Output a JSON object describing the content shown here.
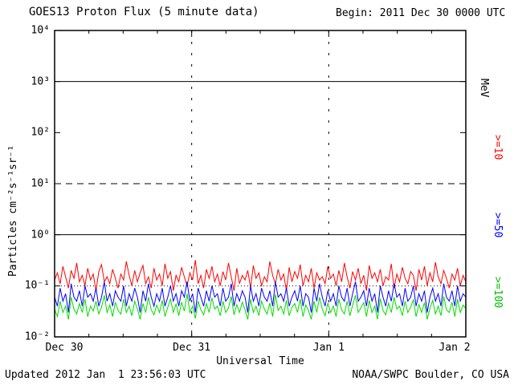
{
  "header": {
    "title": "GOES13 Proton Flux (5 minute data)",
    "begin": "Begin: 2011 Dec 30 0000 UTC"
  },
  "footer": {
    "updated": "Updated 2012 Jan  1 23:56:03 UTC",
    "source": "NOAA/SWPC Boulder, CO USA"
  },
  "axes": {
    "ylabel": "Particles cm⁻²s⁻¹sr⁻¹",
    "xlabel": "Universal Time",
    "right_unit": "MeV"
  },
  "right_labels": {
    "unit": "MeV",
    "ge10": ">=10",
    "ge50": ">=50",
    "ge100": ">=100"
  },
  "colors": {
    "ge10": "#ff0000",
    "ge50": "#0000ff",
    "ge100": "#00dd00",
    "axis": "#000000"
  },
  "chart_data": {
    "type": "line",
    "title": "GOES13 Proton Flux (5 minute data)",
    "subtitle": "Begin: 2011 Dec 30 0000 UTC",
    "xlabel": "Universal Time",
    "ylabel": "Particles cm⁻²s⁻¹sr⁻¹",
    "yscale": "log",
    "y_exponent_range": [
      -2,
      4
    ],
    "y_tick_labels": [
      "10⁴",
      "10³",
      "10²",
      "10¹",
      "10⁰",
      "10⁻¹",
      "10⁻²"
    ],
    "x_tick_labels": [
      "Dec 30",
      "Dec 31",
      "Jan 1",
      "Jan 2"
    ],
    "x_range_days": 3,
    "legend_position": "right",
    "grid": {
      "horizontal_reference_lines": [
        {
          "value": 1000,
          "style": "solid"
        },
        {
          "value": 10,
          "style": "dashed"
        },
        {
          "value": 1,
          "style": "solid"
        },
        {
          "value": 0.1,
          "style": "dotted"
        }
      ],
      "vertical_dashed_lines_at_days": [
        1,
        2
      ]
    },
    "series": [
      {
        "name": ">=10 MeV",
        "color": "#ff0000",
        "approx_range": [
          0.08,
          0.32
        ],
        "values": [
          0.13,
          0.18,
          0.11,
          0.24,
          0.15,
          0.09,
          0.2,
          0.14,
          0.28,
          0.12,
          0.16,
          0.1,
          0.22,
          0.13,
          0.17,
          0.08,
          0.19,
          0.26,
          0.12,
          0.15,
          0.11,
          0.21,
          0.14,
          0.09,
          0.17,
          0.13,
          0.3,
          0.16,
          0.1,
          0.2,
          0.12,
          0.18,
          0.25,
          0.11,
          0.15,
          0.09,
          0.22,
          0.13,
          0.17,
          0.1,
          0.27,
          0.14,
          0.19,
          0.08,
          0.16,
          0.12,
          0.23,
          0.15,
          0.1,
          0.18,
          0.13,
          0.32,
          0.11,
          0.16,
          0.09,
          0.21,
          0.14,
          0.24,
          0.12,
          0.17,
          0.1,
          0.19,
          0.13,
          0.28,
          0.15,
          0.08,
          0.22,
          0.11,
          0.16,
          0.13,
          0.2,
          0.09,
          0.25,
          0.14,
          0.18,
          0.1,
          0.15,
          0.12,
          0.3,
          0.16,
          0.11,
          0.21,
          0.13,
          0.17,
          0.08,
          0.23,
          0.12,
          0.19,
          0.14,
          0.26,
          0.1,
          0.16,
          0.12,
          0.22,
          0.09,
          0.18,
          0.13,
          0.15,
          0.11,
          0.24,
          0.14,
          0.17,
          0.1,
          0.2,
          0.12,
          0.28,
          0.15,
          0.09,
          0.19,
          0.13,
          0.22,
          0.11,
          0.16,
          0.08,
          0.25,
          0.14,
          0.18,
          0.12,
          0.21,
          0.1,
          0.15,
          0.13,
          0.27,
          0.09,
          0.17,
          0.12,
          0.23,
          0.14,
          0.11,
          0.19,
          0.16,
          0.08,
          0.21,
          0.13,
          0.24,
          0.1,
          0.18,
          0.12,
          0.29,
          0.15,
          0.11,
          0.2,
          0.14,
          0.09,
          0.17,
          0.13,
          0.22,
          0.1,
          0.16,
          0.12
        ]
      },
      {
        "name": ">=50 MeV",
        "color": "#0000ff",
        "approx_range": [
          0.03,
          0.12
        ],
        "values": [
          0.06,
          0.04,
          0.09,
          0.05,
          0.07,
          0.03,
          0.11,
          0.06,
          0.05,
          0.08,
          0.04,
          0.1,
          0.06,
          0.07,
          0.05,
          0.09,
          0.04,
          0.06,
          0.12,
          0.05,
          0.07,
          0.04,
          0.08,
          0.06,
          0.05,
          0.1,
          0.04,
          0.07,
          0.05,
          0.09,
          0.06,
          0.03,
          0.08,
          0.05,
          0.11,
          0.06,
          0.04,
          0.07,
          0.05,
          0.09,
          0.04,
          0.06,
          0.1,
          0.05,
          0.07,
          0.04,
          0.08,
          0.06,
          0.12,
          0.05,
          0.07,
          0.03,
          0.09,
          0.06,
          0.04,
          0.08,
          0.05,
          0.1,
          0.06,
          0.07,
          0.04,
          0.09,
          0.05,
          0.06,
          0.11,
          0.04,
          0.07,
          0.05,
          0.08,
          0.06,
          0.03,
          0.1,
          0.05,
          0.07,
          0.04,
          0.09,
          0.06,
          0.05,
          0.08,
          0.04,
          0.12,
          0.06,
          0.07,
          0.05,
          0.09,
          0.04,
          0.06,
          0.08,
          0.05,
          0.1,
          0.04,
          0.07,
          0.06,
          0.03,
          0.09,
          0.05,
          0.11,
          0.06,
          0.04,
          0.08,
          0.05,
          0.07,
          0.04,
          0.1,
          0.06,
          0.05,
          0.09,
          0.04,
          0.07,
          0.12,
          0.05,
          0.06,
          0.08,
          0.04,
          0.09,
          0.05,
          0.07,
          0.03,
          0.1,
          0.06,
          0.04,
          0.08,
          0.05,
          0.11,
          0.06,
          0.07,
          0.04,
          0.09,
          0.05,
          0.06,
          0.1,
          0.04,
          0.07,
          0.05,
          0.08,
          0.03,
          0.06,
          0.09,
          0.05,
          0.07,
          0.04,
          0.11,
          0.06,
          0.05,
          0.08,
          0.04,
          0.1,
          0.05,
          0.07,
          0.06
        ]
      },
      {
        "name": ">=100 MeV",
        "color": "#00dd00",
        "approx_range": [
          0.02,
          0.07
        ],
        "values": [
          0.035,
          0.025,
          0.05,
          0.03,
          0.04,
          0.022,
          0.06,
          0.035,
          0.028,
          0.045,
          0.03,
          0.055,
          0.025,
          0.04,
          0.032,
          0.05,
          0.028,
          0.038,
          0.065,
          0.03,
          0.042,
          0.025,
          0.048,
          0.033,
          0.028,
          0.055,
          0.03,
          0.04,
          0.026,
          0.05,
          0.035,
          0.022,
          0.045,
          0.03,
          0.06,
          0.034,
          0.027,
          0.042,
          0.03,
          0.052,
          0.025,
          0.038,
          0.055,
          0.03,
          0.044,
          0.026,
          0.048,
          0.032,
          0.07,
          0.03,
          0.04,
          0.023,
          0.05,
          0.034,
          0.027,
          0.045,
          0.03,
          0.058,
          0.035,
          0.04,
          0.026,
          0.05,
          0.03,
          0.037,
          0.062,
          0.027,
          0.043,
          0.03,
          0.048,
          0.034,
          0.022,
          0.055,
          0.03,
          0.04,
          0.026,
          0.05,
          0.035,
          0.028,
          0.046,
          0.025,
          0.068,
          0.033,
          0.04,
          0.028,
          0.052,
          0.026,
          0.038,
          0.045,
          0.03,
          0.055,
          0.025,
          0.042,
          0.033,
          0.022,
          0.05,
          0.03,
          0.06,
          0.035,
          0.026,
          0.046,
          0.03,
          0.04,
          0.025,
          0.055,
          0.034,
          0.028,
          0.05,
          0.026,
          0.042,
          0.065,
          0.03,
          0.037,
          0.047,
          0.025,
          0.052,
          0.03,
          0.04,
          0.022,
          0.056,
          0.033,
          0.027,
          0.046,
          0.03,
          0.06,
          0.035,
          0.04,
          0.026,
          0.05,
          0.03,
          0.038,
          0.054,
          0.025,
          0.043,
          0.03,
          0.047,
          0.022,
          0.036,
          0.052,
          0.028,
          0.04,
          0.026,
          0.062,
          0.034,
          0.03,
          0.048,
          0.025,
          0.055,
          0.03,
          0.042,
          0.036
        ]
      }
    ]
  }
}
